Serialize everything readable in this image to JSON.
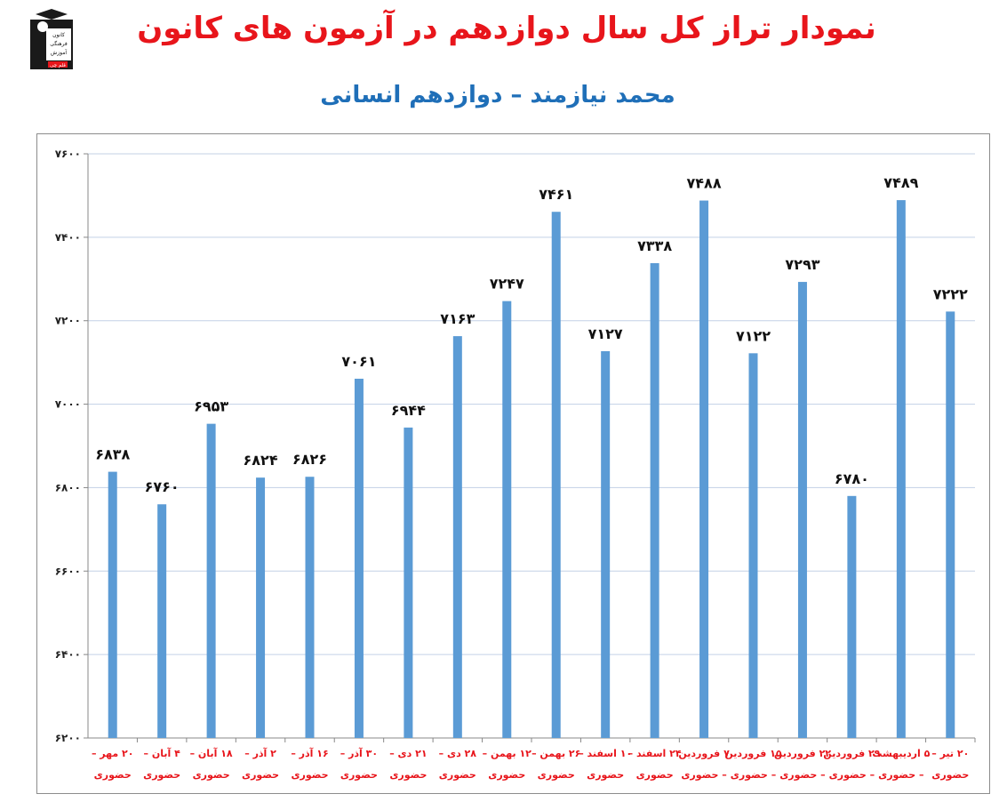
{
  "title": "نمودار تراز کل سال دوازدهم در آزمون های کانون",
  "subtitle": "محمد نیازمند – دوازدهم انسانی",
  "logo": {
    "icon": "graduate-logo-icon",
    "lines": [
      "کانون",
      "فرهنگی",
      "آموزش"
    ],
    "badge": "قلم چی"
  },
  "colors": {
    "title": "#e8151b",
    "subtitle": "#1f6fb8",
    "bar": "#5b9bd5",
    "grid": "#c3d1e6",
    "xlabel": "#e8151b"
  },
  "chart_data": {
    "type": "bar",
    "ylim": [
      6200,
      7600
    ],
    "yticks": [
      "۶۲۰۰",
      "۶۴۰۰",
      "۶۶۰۰",
      "۶۸۰۰",
      "۷۰۰۰",
      "۷۲۰۰",
      "۷۴۰۰",
      "۷۶۰۰"
    ],
    "grid": true,
    "categories": [
      [
        "۲۰ مهر –",
        "حضوری"
      ],
      [
        "۴ آبان –",
        "حضوری"
      ],
      [
        "۱۸ آبان –",
        "حضوری"
      ],
      [
        "۲ آذر –",
        "حضوری"
      ],
      [
        "۱۶ آذر –",
        "حضوری"
      ],
      [
        "۳۰ آذر –",
        "حضوری"
      ],
      [
        "۲۱ دی –",
        "حضوری"
      ],
      [
        "۲۸ دی –",
        "حضوری"
      ],
      [
        "۱۲ بهمن –",
        "حضوری"
      ],
      [
        "۲۶ بهمن –",
        "حضوری"
      ],
      [
        "۱۰ اسفند –",
        "حضوری"
      ],
      [
        "۲۴ اسفند –",
        "حضوری"
      ],
      [
        "۷ فروردین",
        "– حضوری"
      ],
      [
        "۱۵ فروردین",
        "– حضوری"
      ],
      [
        "۲۲ فروردین",
        "– حضوری"
      ],
      [
        "۲۹ فروردین",
        "– حضوری"
      ],
      [
        "۵ اردیبهشت",
        "– حضوری"
      ],
      [
        "۲۰ تیر –",
        "حضوری"
      ]
    ],
    "values": [
      6838,
      6760,
      6953,
      6824,
      6826,
      7061,
      6944,
      7163,
      7247,
      7461,
      7127,
      7338,
      7488,
      7122,
      7293,
      6780,
      7489,
      7222
    ],
    "value_labels": [
      "۶۸۳۸",
      "۶۷۶۰",
      "۶۹۵۳",
      "۶۸۲۴",
      "۶۸۲۶",
      "۷۰۶۱",
      "۶۹۴۴",
      "۷۱۶۳",
      "۷۲۴۷",
      "۷۴۶۱",
      "۷۱۲۷",
      "۷۳۳۸",
      "۷۴۸۸",
      "۷۱۲۲",
      "۷۲۹۳",
      "۶۷۸۰",
      "۷۴۸۹",
      "۷۲۲۲"
    ]
  }
}
